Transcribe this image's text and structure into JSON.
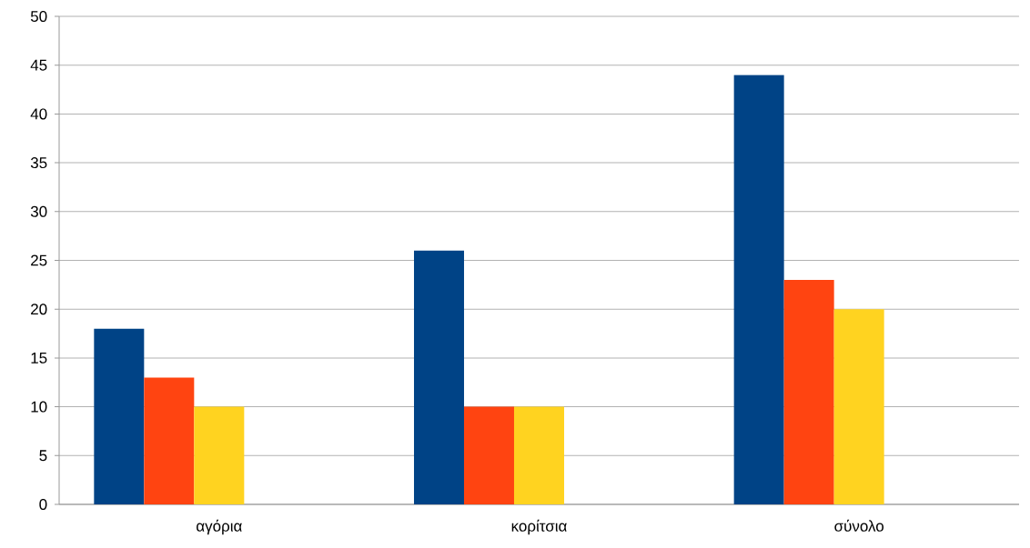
{
  "chart_data": {
    "type": "bar",
    "categories": [
      "αγόρια",
      "κορίτσια",
      "σύνολο"
    ],
    "series": [
      {
        "color": "#004386",
        "values": [
          18,
          26,
          44
        ]
      },
      {
        "color": "#ff4411",
        "values": [
          13,
          10,
          23
        ]
      },
      {
        "color": "#ffd320",
        "values": [
          10,
          10,
          20
        ]
      }
    ],
    "ylim": [
      0,
      50
    ],
    "yticks": [
      0,
      5,
      10,
      15,
      20,
      25,
      30,
      35,
      40,
      45,
      50
    ],
    "grid": "y"
  }
}
